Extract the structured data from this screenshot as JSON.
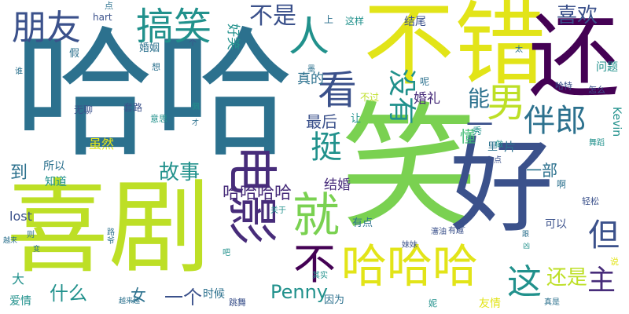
{
  "palette": {
    "navy": "#3b518b",
    "teal_dark": "#2c718e",
    "teal": "#21918c",
    "green": "#3fbc73",
    "lime": "#7ad151",
    "yellow": "#bddf26",
    "bright_yellow": "#e2e418",
    "purple": "#472c7a",
    "dark_purple": "#440154"
  },
  "words": [
    {
      "id": "haha-big",
      "text": "哈哈",
      "color": "teal_dark"
    },
    {
      "id": "xiao",
      "text": "笑",
      "color": "lime"
    },
    {
      "id": "bucuo",
      "text": "不错",
      "color": "bright_yellow"
    },
    {
      "id": "xiju",
      "text": "喜剧",
      "color": "yellow"
    },
    {
      "id": "hao",
      "text": "好",
      "color": "navy"
    },
    {
      "id": "hai",
      "text": "还",
      "color": "dark_purple"
    },
    {
      "id": "dianying",
      "text": "电影",
      "color": "purple"
    },
    {
      "id": "hahaha",
      "text": "哈哈哈",
      "color": "bright_yellow"
    },
    {
      "id": "pengyou",
      "text": "朋友",
      "color": "navy"
    },
    {
      "id": "gaoxiao",
      "text": "搞笑",
      "color": "teal"
    },
    {
      "id": "nan",
      "text": "男",
      "color": "yellow"
    },
    {
      "id": "jiu",
      "text": "就",
      "color": "lime"
    },
    {
      "id": "kan",
      "text": "看",
      "color": "navy"
    },
    {
      "id": "ren",
      "text": "人",
      "color": "teal"
    },
    {
      "id": "banlang",
      "text": "伴郎",
      "color": "teal_dark"
    },
    {
      "id": "meiyou",
      "text": "没有",
      "color": "teal"
    },
    {
      "id": "ting",
      "text": "挺",
      "color": "teal"
    },
    {
      "id": "bu",
      "text": "不",
      "color": "dark_purple"
    },
    {
      "id": "zhe",
      "text": "这",
      "color": "teal"
    },
    {
      "id": "dan",
      "text": "但",
      "color": "navy"
    },
    {
      "id": "zhu",
      "text": "主",
      "color": "purple"
    },
    {
      "id": "neng",
      "text": "能",
      "color": "teal_dark"
    },
    {
      "id": "bushi",
      "text": "不是",
      "color": "navy"
    },
    {
      "id": "xihuan",
      "text": "喜欢",
      "color": "navy"
    },
    {
      "id": "gushi",
      "text": "故事",
      "color": "teal"
    },
    {
      "id": "penny",
      "text": "Penny",
      "color": "teal"
    },
    {
      "id": "haixi",
      "text": "还是",
      "color": "yellow"
    },
    {
      "id": "hahahaha",
      "text": "哈哈哈哈",
      "color": "purple"
    },
    {
      "id": "yige",
      "text": "一个",
      "color": "navy"
    },
    {
      "id": "shenme",
      "text": "什么",
      "color": "teal"
    },
    {
      "id": "zuihou",
      "text": "最后",
      "color": "navy"
    },
    {
      "id": "yi",
      "text": "一",
      "color": "navy"
    },
    {
      "id": "dao",
      "text": "到",
      "color": "teal_dark"
    },
    {
      "id": "yibu",
      "text": "一部",
      "color": "teal_dark"
    },
    {
      "id": "jiehun",
      "text": "结婚",
      "color": "purple"
    },
    {
      "id": "dong",
      "text": "懂",
      "color": "green"
    },
    {
      "id": "zhende",
      "text": "真的",
      "color": "teal_dark"
    },
    {
      "id": "hunli",
      "text": "婚礼",
      "color": "purple"
    },
    {
      "id": "haoxiao",
      "text": "好笑",
      "color": "teal"
    },
    {
      "id": "suiran",
      "text": "虽然",
      "color": "bright_yellow"
    },
    {
      "id": "suoyi",
      "text": "所以",
      "color": "teal_dark"
    },
    {
      "id": "zhidao",
      "text": "知道",
      "color": "teal"
    },
    {
      "id": "lost",
      "text": "lost",
      "color": "navy"
    },
    {
      "id": "da",
      "text": "大",
      "color": "teal"
    },
    {
      "id": "nv",
      "text": "女",
      "color": "teal_dark"
    },
    {
      "id": "aiqing",
      "text": "爱情",
      "color": "teal"
    },
    {
      "id": "shihou",
      "text": "时候",
      "color": "teal_dark"
    },
    {
      "id": "youdian",
      "text": "有点",
      "color": "teal_dark"
    },
    {
      "id": "yinwei",
      "text": "因为",
      "color": "teal_dark"
    },
    {
      "id": "keyi",
      "text": "可以",
      "color": "navy"
    },
    {
      "id": "youqing",
      "text": "友情",
      "color": "bright_yellow"
    },
    {
      "id": "jiewei",
      "text": "结尾",
      "color": "navy"
    },
    {
      "id": "zheyang",
      "text": "这样",
      "color": "teal"
    },
    {
      "id": "shang",
      "text": "上",
      "color": "teal_dark"
    },
    {
      "id": "wenti",
      "text": "问题",
      "color": "teal"
    },
    {
      "id": "kevin",
      "text": "Kevin",
      "color": "teal"
    },
    {
      "id": "pian",
      "text": "片",
      "color": "teal_dark"
    },
    {
      "id": "li",
      "text": "里",
      "color": "teal_dark"
    },
    {
      "id": "a",
      "text": "啊",
      "color": "teal_dark"
    },
    {
      "id": "shuo",
      "text": "说",
      "color": "bright_yellow"
    },
    {
      "id": "hunyin",
      "text": "婚姻",
      "color": "teal_dark"
    },
    {
      "id": "wuliao",
      "text": "无聊",
      "color": "navy"
    },
    {
      "id": "taolu",
      "text": "套路",
      "color": "navy"
    },
    {
      "id": "yisi",
      "text": "意思",
      "color": "teal"
    },
    {
      "id": "bijiao",
      "text": "比较",
      "color": "teal_dark"
    },
    {
      "id": "rang",
      "text": "让",
      "color": "teal"
    },
    {
      "id": "buguo",
      "text": "不过",
      "color": "yellow"
    },
    {
      "id": "xiu",
      "text": "秀",
      "color": "teal"
    },
    {
      "id": "dian",
      "text": "点",
      "color": "teal_dark"
    },
    {
      "id": "hart",
      "text": "hart",
      "color": "navy"
    },
    {
      "id": "jia",
      "text": "假",
      "color": "teal_dark"
    },
    {
      "id": "xiang",
      "text": "想",
      "color": "teal_dark"
    },
    {
      "id": "shui",
      "text": "谁",
      "color": "teal_dark"
    },
    {
      "id": "ge",
      "text": "个",
      "color": "navy"
    },
    {
      "id": "ne",
      "text": "呢",
      "color": "teal_dark"
    },
    {
      "id": "tai",
      "text": "太",
      "color": "teal_dark"
    },
    {
      "id": "hate",
      "text": "哈特",
      "color": "navy"
    },
    {
      "id": "zenme",
      "text": "怎么",
      "color": "navy"
    },
    {
      "id": "wudao",
      "text": "舞蹈",
      "color": "teal"
    },
    {
      "id": "qingsong",
      "text": "轻松",
      "color": "navy"
    },
    {
      "id": "zuo",
      "text": "做",
      "color": "teal"
    },
    {
      "id": "yidian",
      "text": "一点",
      "color": "navy"
    },
    {
      "id": "jiayou",
      "text": "瀋油",
      "color": "navy"
    },
    {
      "id": "youqu",
      "text": "有趣",
      "color": "navy"
    },
    {
      "id": "mei",
      "text": "美",
      "color": "navy"
    },
    {
      "id": "genyi",
      "text": "跟",
      "color": "teal_dark"
    },
    {
      "id": "meimei",
      "text": "妹妹",
      "color": "navy"
    },
    {
      "id": "guanyu",
      "text": "关于",
      "color": "teal"
    },
    {
      "id": "ba",
      "text": "吧",
      "color": "teal"
    },
    {
      "id": "qishi",
      "text": "其实",
      "color": "teal"
    },
    {
      "id": "tiaowu",
      "text": "跳舞",
      "color": "navy"
    },
    {
      "id": "ni",
      "text": "妮",
      "color": "teal"
    },
    {
      "id": "zhenshi",
      "text": "真是",
      "color": "teal_dark"
    },
    {
      "id": "yueLaiyue",
      "text": "越来越",
      "color": "teal_dark"
    },
    {
      "id": "yuelai",
      "text": "越来",
      "color": "teal_dark"
    },
    {
      "id": "cai",
      "text": "才",
      "color": "teal_dark"
    },
    {
      "id": "pei",
      "text": "佩",
      "color": "teal"
    },
    {
      "id": "ze",
      "text": "则",
      "color": "teal_dark"
    },
    {
      "id": "ye",
      "text": "爷",
      "color": "teal_dark"
    },
    {
      "id": "lu",
      "text": "路",
      "color": "teal_dark"
    },
    {
      "id": "bian",
      "text": "变",
      "color": "teal_dark"
    },
    {
      "id": "xiong",
      "text": "凶",
      "color": "teal"
    },
    {
      "id": "mo",
      "text": "墨",
      "color": "teal_dark"
    }
  ]
}
